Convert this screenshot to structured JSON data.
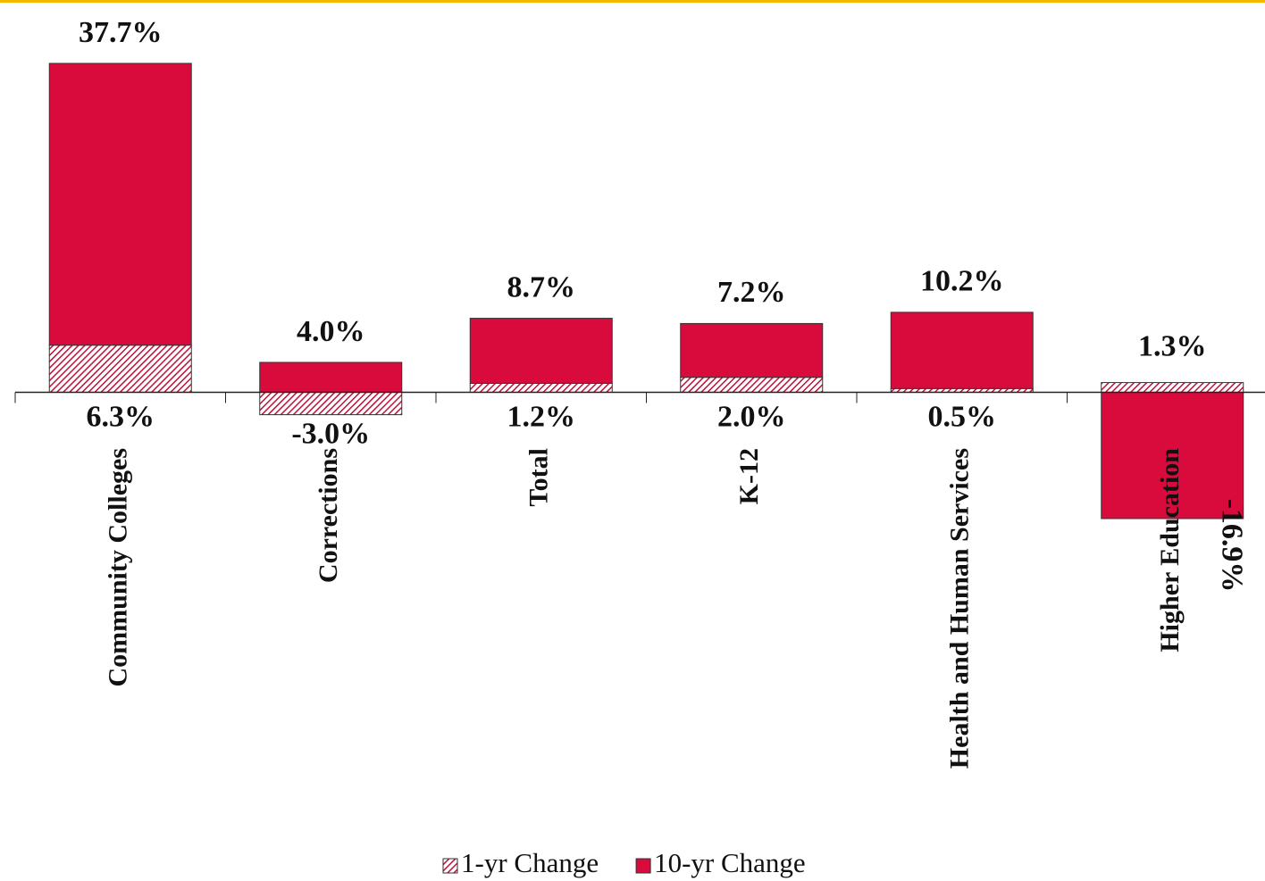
{
  "chart_data": {
    "type": "bar",
    "stacked": true,
    "categories": [
      "Community Colleges",
      "Corrections",
      "Total",
      "K-12",
      "Health and Human Services",
      "Higher Education"
    ],
    "series": [
      {
        "name": "1-yr Change",
        "color": "#d90b3c",
        "pattern": "hatch",
        "values": [
          6.3,
          -3.0,
          1.2,
          2.0,
          0.5,
          1.3
        ],
        "value_labels": [
          "6.3%",
          "-3.0%",
          "1.2%",
          "2.0%",
          "0.5%",
          "1.3%"
        ]
      },
      {
        "name": "10-yr Change",
        "color": "#d90b3c",
        "values": [
          37.7,
          4.0,
          8.7,
          7.2,
          10.2,
          -16.9
        ],
        "value_labels": [
          "37.7%",
          "4.0%",
          "8.7%",
          "7.2%",
          "10.2%",
          "-16.9%"
        ]
      }
    ],
    "legend": "bottom"
  }
}
